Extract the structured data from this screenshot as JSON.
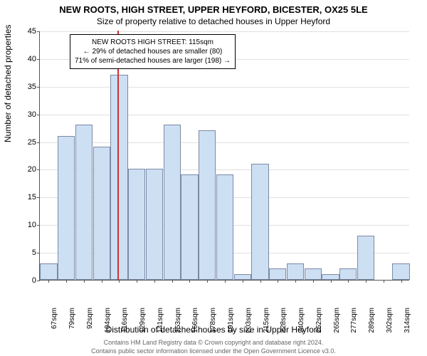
{
  "chart": {
    "type": "histogram",
    "title_main": "NEW ROOTS, HIGH STREET, UPPER HEYFORD, BICESTER, OX25 5LE",
    "title_sub": "Size of property relative to detached houses in Upper Heyford",
    "y_label": "Number of detached properties",
    "x_label": "Distribution of detached houses by size in Upper Heyford",
    "footer1": "Contains HM Land Registry data © Crown copyright and database right 2024.",
    "footer2": "Contains public sector information licensed under the Open Government Licence v3.0.",
    "ylim": [
      0,
      45
    ],
    "ytick_step": 5,
    "background_color": "#ffffff",
    "grid_color": "#e0e0e0",
    "axis_color": "#555555",
    "bar_fill": "#cddff3",
    "bar_border": "#7c8aa5",
    "marker_color": "#cc3333",
    "marker_value": 115,
    "title_fontsize": 13,
    "label_fontsize": 12,
    "tick_fontsize": 11,
    "categories": [
      "67sqm",
      "79sqm",
      "92sqm",
      "104sqm",
      "116sqm",
      "129sqm",
      "141sqm",
      "153sqm",
      "166sqm",
      "178sqm",
      "191sqm",
      "203sqm",
      "215sqm",
      "228sqm",
      "240sqm",
      "252sqm",
      "265sqm",
      "277sqm",
      "289sqm",
      "302sqm",
      "314sqm"
    ],
    "values": [
      3,
      26,
      28,
      24,
      37,
      20,
      20,
      28,
      19,
      27,
      19,
      1,
      21,
      2,
      3,
      2,
      1,
      2,
      8,
      0,
      3
    ],
    "annotation": {
      "line1": "NEW ROOTS HIGH STREET: 115sqm",
      "line2": "← 29% of detached houses are smaller (80)",
      "line3": "71% of semi-detached houses are larger (198) →"
    }
  }
}
